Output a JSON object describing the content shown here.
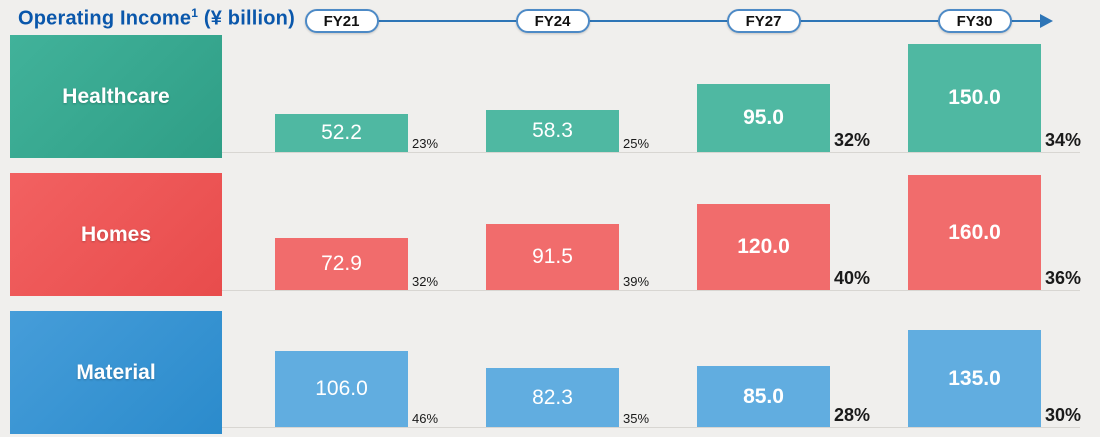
{
  "title": {
    "prefix": "Operating Income",
    "sup": "1",
    "suffix": " (¥ billion)"
  },
  "chart_data": {
    "type": "bar",
    "title": "Operating Income (¥ billion)",
    "unit": "¥ billion",
    "categories": [
      "FY21",
      "FY24",
      "FY27",
      "FY30"
    ],
    "series": [
      {
        "name": "Healthcare",
        "values": [
          52.2,
          58.3,
          95.0,
          150.0
        ],
        "value_labels": [
          "52.2",
          "58.3",
          "95.0",
          "150.0"
        ],
        "margins": [
          "23%",
          "25%",
          "32%",
          "34%"
        ],
        "bar_color": "#4fb8a2",
        "box_color_start": "#41b29a",
        "box_color_end": "#2f9e86"
      },
      {
        "name": "Homes",
        "values": [
          72.9,
          91.5,
          120.0,
          160.0
        ],
        "value_labels": [
          "72.9",
          "91.5",
          "120.0",
          "160.0"
        ],
        "margins": [
          "32%",
          "39%",
          "40%",
          "36%"
        ],
        "bar_color": "#f16c6c",
        "box_color_start": "#f26161",
        "box_color_end": "#e84c4c"
      },
      {
        "name": "Material",
        "values": [
          106.0,
          82.3,
          85.0,
          135.0
        ],
        "value_labels": [
          "106.0",
          "82.3",
          "85.0",
          "135.0"
        ],
        "margins": [
          "46%",
          "35%",
          "28%",
          "30%"
        ],
        "bar_color": "#61ade0",
        "box_color_start": "#469dd9",
        "box_color_end": "#2b8bcc"
      }
    ],
    "value_axis_max": 160,
    "emphasis_from_index": 2,
    "legend_position": "left-row-labels",
    "grid": false,
    "accent_color": "#2e75b6",
    "title_color": "#0a57ab",
    "background_color": "#f0efed"
  }
}
